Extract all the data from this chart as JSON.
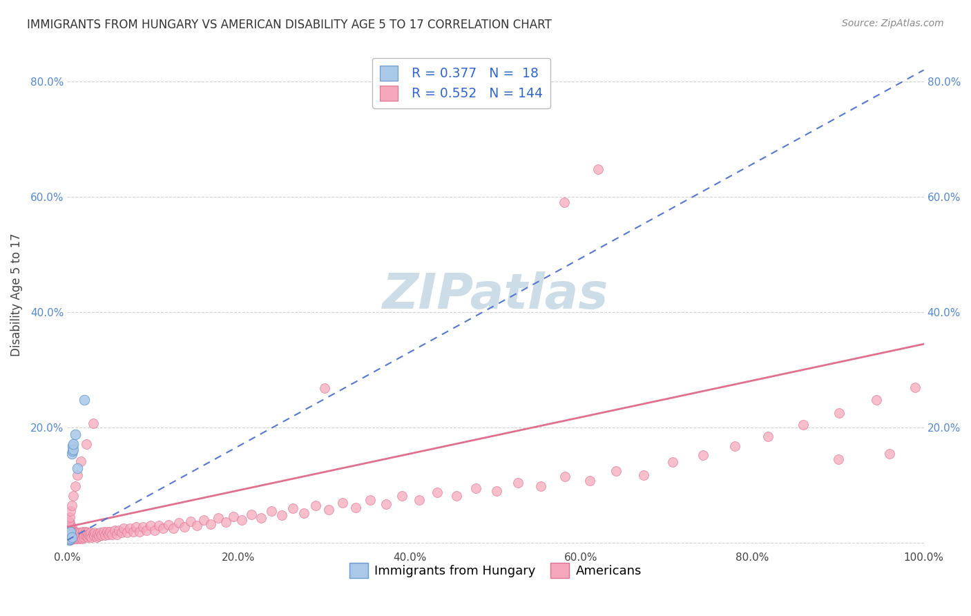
{
  "title": "IMMIGRANTS FROM HUNGARY VS AMERICAN DISABILITY AGE 5 TO 17 CORRELATION CHART",
  "source": "Source: ZipAtlas.com",
  "ylabel": "Disability Age 5 to 17",
  "xlim": [
    0,
    1.0
  ],
  "ylim": [
    -0.01,
    0.87
  ],
  "xticks": [
    0.0,
    0.2,
    0.4,
    0.6,
    0.8,
    1.0
  ],
  "xtick_labels": [
    "0.0%",
    "20.0%",
    "40.0%",
    "60.0%",
    "80.0%",
    "100.0%"
  ],
  "yticks": [
    0.0,
    0.2,
    0.4,
    0.6,
    0.8
  ],
  "ytick_labels": [
    "",
    "20.0%",
    "40.0%",
    "60.0%",
    "80.0%"
  ],
  "color_hungary": "#aac8e8",
  "color_americans": "#f5a8bc",
  "color_hungary_edge": "#6699cc",
  "color_hungary_line": "#5577cc",
  "color_americans_edge": "#e07090",
  "color_americans_line": "#e07090",
  "watermark_color": "#ccdde8",
  "hungary_x": [
    0.001,
    0.001,
    0.002,
    0.002,
    0.002,
    0.003,
    0.003,
    0.004,
    0.004,
    0.005,
    0.005,
    0.006,
    0.006,
    0.007,
    0.007,
    0.009,
    0.012,
    0.02
  ],
  "hungary_y": [
    0.008,
    0.012,
    0.005,
    0.01,
    0.018,
    0.006,
    0.015,
    0.008,
    0.02,
    0.01,
    0.155,
    0.168,
    0.16,
    0.162,
    0.172,
    0.188,
    0.13,
    0.248
  ],
  "hungary_trend_x": [
    0.0,
    1.0
  ],
  "hungary_trend_y": [
    0.005,
    0.82
  ],
  "americans_trend_x": [
    0.0,
    1.0
  ],
  "americans_trend_y": [
    0.028,
    0.345
  ],
  "americans_x": [
    0.001,
    0.001,
    0.001,
    0.002,
    0.002,
    0.002,
    0.002,
    0.003,
    0.003,
    0.003,
    0.003,
    0.003,
    0.004,
    0.004,
    0.004,
    0.004,
    0.005,
    0.005,
    0.005,
    0.005,
    0.006,
    0.006,
    0.006,
    0.007,
    0.007,
    0.007,
    0.008,
    0.008,
    0.009,
    0.009,
    0.01,
    0.01,
    0.011,
    0.011,
    0.012,
    0.012,
    0.013,
    0.014,
    0.014,
    0.015,
    0.015,
    0.016,
    0.017,
    0.018,
    0.018,
    0.019,
    0.02,
    0.021,
    0.022,
    0.023,
    0.024,
    0.025,
    0.026,
    0.027,
    0.028,
    0.03,
    0.031,
    0.032,
    0.034,
    0.035,
    0.037,
    0.038,
    0.04,
    0.042,
    0.044,
    0.046,
    0.048,
    0.05,
    0.052,
    0.055,
    0.058,
    0.06,
    0.063,
    0.066,
    0.07,
    0.073,
    0.077,
    0.08,
    0.084,
    0.088,
    0.092,
    0.097,
    0.102,
    0.107,
    0.112,
    0.118,
    0.124,
    0.13,
    0.137,
    0.144,
    0.151,
    0.159,
    0.167,
    0.176,
    0.185,
    0.194,
    0.204,
    0.215,
    0.226,
    0.238,
    0.25,
    0.263,
    0.276,
    0.29,
    0.305,
    0.321,
    0.337,
    0.354,
    0.372,
    0.391,
    0.411,
    0.432,
    0.454,
    0.477,
    0.501,
    0.526,
    0.553,
    0.581,
    0.61,
    0.641,
    0.673,
    0.707,
    0.742,
    0.779,
    0.818,
    0.859,
    0.901,
    0.945,
    0.99,
    0.002,
    0.003,
    0.004,
    0.005,
    0.007,
    0.009,
    0.012,
    0.016,
    0.022,
    0.03,
    0.58,
    0.62,
    0.9,
    0.96,
    0.3
  ],
  "americans_y": [
    0.01,
    0.018,
    0.025,
    0.008,
    0.015,
    0.022,
    0.03,
    0.006,
    0.012,
    0.02,
    0.028,
    0.035,
    0.005,
    0.01,
    0.018,
    0.025,
    0.008,
    0.014,
    0.02,
    0.028,
    0.01,
    0.016,
    0.022,
    0.008,
    0.014,
    0.02,
    0.01,
    0.018,
    0.008,
    0.016,
    0.01,
    0.018,
    0.008,
    0.016,
    0.01,
    0.018,
    0.012,
    0.008,
    0.016,
    0.01,
    0.018,
    0.012,
    0.008,
    0.015,
    0.02,
    0.01,
    0.015,
    0.02,
    0.012,
    0.018,
    0.01,
    0.015,
    0.012,
    0.018,
    0.01,
    0.016,
    0.012,
    0.018,
    0.01,
    0.016,
    0.012,
    0.018,
    0.014,
    0.02,
    0.014,
    0.02,
    0.015,
    0.02,
    0.015,
    0.022,
    0.015,
    0.022,
    0.018,
    0.025,
    0.018,
    0.025,
    0.02,
    0.028,
    0.02,
    0.028,
    0.022,
    0.03,
    0.022,
    0.03,
    0.025,
    0.032,
    0.025,
    0.035,
    0.028,
    0.038,
    0.03,
    0.04,
    0.033,
    0.043,
    0.036,
    0.046,
    0.04,
    0.05,
    0.043,
    0.055,
    0.048,
    0.06,
    0.052,
    0.065,
    0.058,
    0.07,
    0.062,
    0.075,
    0.068,
    0.082,
    0.075,
    0.088,
    0.082,
    0.095,
    0.09,
    0.105,
    0.098,
    0.115,
    0.108,
    0.125,
    0.118,
    0.14,
    0.152,
    0.168,
    0.185,
    0.205,
    0.225,
    0.248,
    0.27,
    0.038,
    0.045,
    0.055,
    0.065,
    0.082,
    0.098,
    0.118,
    0.142,
    0.172,
    0.208,
    0.59,
    0.648,
    0.145,
    0.155,
    0.268
  ]
}
